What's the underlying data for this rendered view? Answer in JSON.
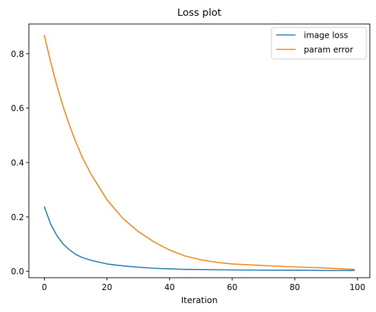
{
  "chart_data": {
    "type": "line",
    "title": "Loss plot",
    "xlabel": "Iteration",
    "ylabel": "",
    "xlim": [
      -4.95,
      103.95
    ],
    "ylim": [
      -0.0237,
      0.9094
    ],
    "xticks": [
      0,
      20,
      40,
      60,
      80,
      100
    ],
    "yticks": [
      0.0,
      0.2,
      0.4,
      0.6,
      0.8
    ],
    "xtick_labels": [
      "0",
      "20",
      "40",
      "60",
      "80",
      "100"
    ],
    "ytick_labels": [
      "0.0",
      "0.2",
      "0.4",
      "0.6",
      "0.8"
    ],
    "grid": false,
    "legend_position": "top-right",
    "series": [
      {
        "name": "image loss",
        "color": "#1f77b4",
        "x": [
          0,
          2,
          4,
          6,
          8,
          10,
          12,
          15,
          20,
          25,
          30,
          35,
          40,
          45,
          50,
          60,
          70,
          80,
          90,
          99
        ],
        "y": [
          0.237,
          0.174,
          0.131,
          0.1,
          0.079,
          0.062,
          0.051,
          0.04,
          0.027,
          0.02,
          0.015,
          0.011,
          0.009,
          0.007,
          0.006,
          0.005,
          0.004,
          0.004,
          0.003,
          0.003
        ]
      },
      {
        "name": "param error",
        "color": "#ff7f0e",
        "x": [
          0,
          2,
          4,
          6,
          8,
          10,
          12,
          15,
          20,
          25,
          30,
          35,
          40,
          45,
          50,
          55,
          60,
          70,
          80,
          90,
          99
        ],
        "y": [
          0.867,
          0.77,
          0.683,
          0.605,
          0.537,
          0.476,
          0.422,
          0.355,
          0.263,
          0.195,
          0.146,
          0.108,
          0.078,
          0.056,
          0.042,
          0.033,
          0.027,
          0.021,
          0.016,
          0.012,
          0.007
        ]
      }
    ]
  }
}
